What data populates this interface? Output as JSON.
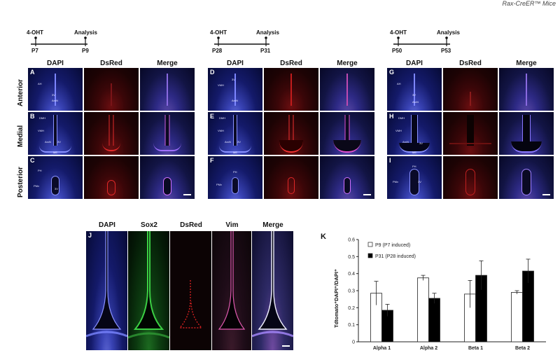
{
  "corner_text": "Rax-CreER™ Mice",
  "timelines": [
    {
      "start": "4-OHT",
      "end": "Analysis",
      "from": "P7",
      "to": "P9"
    },
    {
      "start": "4-OHT",
      "end": "Analysis",
      "from": "P28",
      "to": "P31"
    },
    {
      "start": "4-OHT",
      "end": "Analysis",
      "from": "P50",
      "to": "P53"
    }
  ],
  "column_headers": [
    "DAPI",
    "DsRed",
    "Merge"
  ],
  "row_headers": [
    "Anterior",
    "Medial",
    "Posterior"
  ],
  "panel_letters": {
    "set1": [
      "A",
      "B",
      "C"
    ],
    "set2": [
      "D",
      "E",
      "F"
    ],
    "set3": [
      "G",
      "H",
      "I"
    ]
  },
  "region_labels": {
    "anterior": [
      "3V",
      "ArcN",
      "AH"
    ],
    "medial": [
      "DMH",
      "VMH",
      "ArcN",
      "3V",
      "ME"
    ],
    "posterior": [
      "PH",
      "PMv",
      "3V"
    ]
  },
  "panel_j": {
    "letter": "J",
    "headers": [
      "DAPI",
      "Sox2",
      "DsRed",
      "Vim",
      "Merge"
    ]
  },
  "panel_k": {
    "letter": "K"
  },
  "chart_data": {
    "type": "bar",
    "categories": [
      "Alpha 1",
      "Alpha 2",
      "Beta 1",
      "Beta 2"
    ],
    "series": [
      {
        "name": "P9 (P7 induced)",
        "values": [
          0.285,
          0.375,
          0.28,
          0.29
        ],
        "errors": [
          0.07,
          0.015,
          0.08,
          0.01
        ],
        "color": "#ffffff"
      },
      {
        "name": "P31 (P28 induced)",
        "values": [
          0.185,
          0.255,
          0.39,
          0.415
        ],
        "errors": [
          0.035,
          0.03,
          0.085,
          0.07
        ],
        "color": "#000000"
      }
    ],
    "ylabel": "Tdtomato⁺DAPI⁺/DAPI⁺",
    "ylim": [
      0,
      0.6
    ],
    "yticks": [
      "0",
      "0.1",
      "0.2",
      "0.3",
      "0.4",
      "0.5",
      "0.6"
    ],
    "grid": false,
    "legend_position": "top-left"
  }
}
